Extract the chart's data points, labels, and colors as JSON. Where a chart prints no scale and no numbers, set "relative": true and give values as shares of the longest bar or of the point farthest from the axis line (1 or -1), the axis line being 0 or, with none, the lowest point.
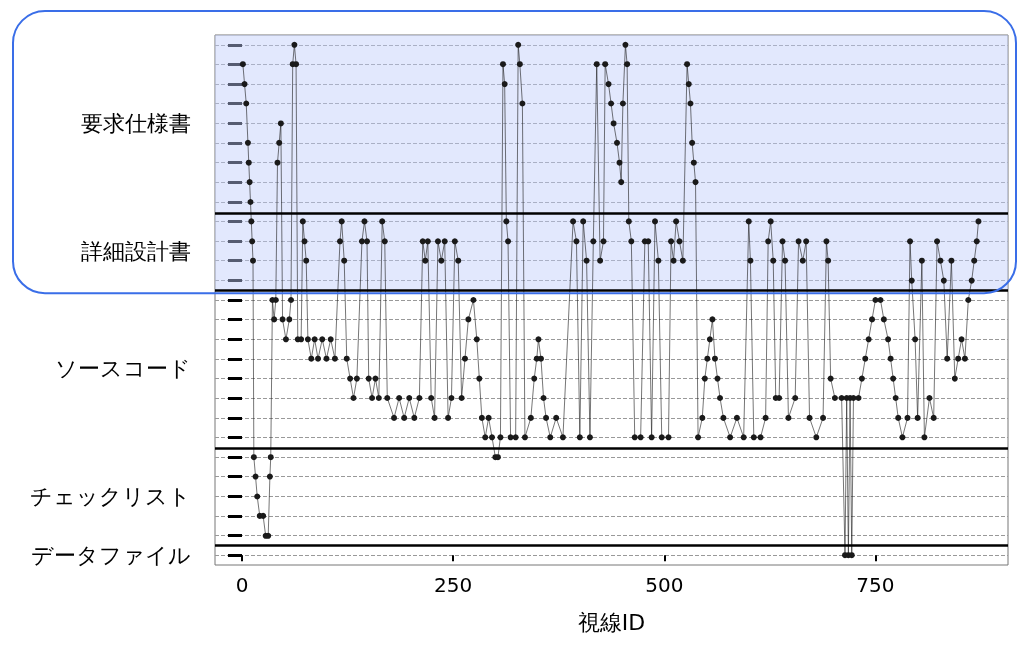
{
  "chart_data": {
    "type": "line",
    "xlabel": "視線ID",
    "relative": true,
    "x": [
      1,
      3,
      5,
      7,
      8,
      9,
      10,
      11,
      12,
      13,
      14,
      16,
      18,
      21,
      25,
      28,
      31,
      33,
      34,
      36,
      38,
      40,
      42,
      44,
      46,
      48,
      52,
      56,
      58,
      60,
      62,
      64,
      66,
      70,
      72,
      74,
      76,
      78,
      82,
      86,
      90,
      95,
      100,
      105,
      110,
      116,
      118,
      121,
      124,
      128,
      132,
      136,
      142,
      145,
      148,
      150,
      154,
      158,
      162,
      166,
      169,
      172,
      180,
      186,
      192,
      198,
      204,
      210,
      214,
      217,
      220,
      224,
      228,
      232,
      236,
      240,
      244,
      248,
      252,
      256,
      260,
      264,
      268,
      274,
      278,
      281,
      284,
      288,
      292,
      296,
      300,
      303,
      306,
      309,
      311,
      313,
      315,
      318,
      324,
      327,
      329,
      332,
      335,
      342,
      346,
      349,
      351,
      354,
      357,
      360,
      365,
      372,
      380,
      392,
      396,
      400,
      404,
      408,
      412,
      416,
      420,
      424,
      428,
      430,
      434,
      437,
      440,
      444,
      447,
      449,
      451,
      454,
      456,
      458,
      461,
      465,
      472,
      477,
      481,
      485,
      489,
      493,
      497,
      505,
      508,
      511,
      514,
      518,
      522,
      527,
      529,
      531,
      533,
      535,
      537,
      540,
      545,
      548,
      551,
      554,
      557,
      560,
      563,
      566,
      570,
      578,
      586,
      594,
      600,
      602,
      606,
      614,
      620,
      623,
      626,
      629,
      632,
      636,
      640,
      643,
      647,
      655,
      659,
      664,
      668,
      672,
      680,
      688,
      692,
      694,
      697,
      702,
      710,
      714,
      716,
      718,
      720,
      722,
      724,
      730,
      734,
      738,
      742,
      746,
      750,
      756,
      760,
      765,
      768,
      771,
      774,
      777,
      782,
      788,
      791,
      793,
      797,
      800,
      805,
      808,
      814,
      819,
      823,
      827,
      831,
      835,
      840,
      844,
      848,
      852,
      856,
      860,
      864,
      867,
      870,
      872
    ],
    "values": [
      0.962,
      0.923,
      0.885,
      0.808,
      0.769,
      0.731,
      0.692,
      0.654,
      0.615,
      0.577,
      0.192,
      0.154,
      0.115,
      0.077,
      0.077,
      0.038,
      0.038,
      0.154,
      0.192,
      0.5,
      0.462,
      0.5,
      0.769,
      0.808,
      0.846,
      0.462,
      0.423,
      0.462,
      0.5,
      0.962,
      1,
      0.962,
      0.423,
      0.423,
      0.654,
      0.615,
      0.577,
      0.423,
      0.385,
      0.423,
      0.385,
      0.423,
      0.385,
      0.423,
      0.385,
      0.615,
      0.654,
      0.577,
      0.385,
      0.346,
      0.308,
      0.346,
      0.615,
      0.654,
      0.615,
      0.346,
      0.308,
      0.346,
      0.308,
      0.654,
      0.615,
      0.308,
      0.269,
      0.308,
      0.269,
      0.308,
      0.269,
      0.308,
      0.615,
      0.577,
      0.615,
      0.308,
      0.269,
      0.615,
      0.577,
      0.615,
      0.269,
      0.308,
      0.615,
      0.577,
      0.308,
      0.385,
      0.462,
      0.5,
      0.423,
      0.346,
      0.269,
      0.231,
      0.269,
      0.231,
      0.192,
      0.192,
      0.231,
      0.962,
      0.923,
      0.654,
      0.615,
      0.231,
      0.231,
      1,
      0.962,
      0.885,
      0.231,
      0.269,
      0.346,
      0.385,
      0.423,
      0.385,
      0.308,
      0.269,
      0.231,
      0.269,
      0.231,
      0.654,
      0.615,
      0.231,
      0.654,
      0.577,
      0.231,
      0.615,
      0.962,
      0.577,
      0.615,
      0.962,
      0.923,
      0.885,
      0.846,
      0.808,
      0.769,
      0.731,
      0.885,
      1,
      0.962,
      0.654,
      0.615,
      0.231,
      0.231,
      0.615,
      0.615,
      0.231,
      0.654,
      0.577,
      0.231,
      0.231,
      0.615,
      0.577,
      0.654,
      0.615,
      0.577,
      0.962,
      0.923,
      0.885,
      0.808,
      0.769,
      0.731,
      0.231,
      0.269,
      0.346,
      0.385,
      0.423,
      0.462,
      0.385,
      0.346,
      0.308,
      0.269,
      0.231,
      0.269,
      0.231,
      0.654,
      0.577,
      0.231,
      0.231,
      0.269,
      0.615,
      0.654,
      0.577,
      0.308,
      0.308,
      0.615,
      0.577,
      0.269,
      0.308,
      0.615,
      0.577,
      0.615,
      0.269,
      0.231,
      0.269,
      0.615,
      0.577,
      0.346,
      0.308,
      0.308,
      0,
      0.308,
      0,
      0.308,
      0,
      0.308,
      0.308,
      0.346,
      0.385,
      0.423,
      0.462,
      0.5,
      0.5,
      0.462,
      0.423,
      0.385,
      0.346,
      0.308,
      0.269,
      0.231,
      0.269,
      0.615,
      0.538,
      0.423,
      0.269,
      0.577,
      0.231,
      0.308,
      0.269,
      0.615,
      0.577,
      0.538,
      0.385,
      0.577,
      0.346,
      0.385,
      0.423,
      0.385,
      0.5,
      0.538,
      0.577,
      0.615,
      0.654
    ],
    "color": "#1a1a1a",
    "marker": "circle",
    "xlim": [
      -32,
      907
    ],
    "xticks": [
      0,
      250,
      500,
      750
    ],
    "annotations": [
      "要求仕様書",
      "詳細設計書",
      "ソースコード",
      "チェックリスト",
      "データファイル"
    ],
    "ref_lines": [
      {
        "axis": "y",
        "value": 0.019,
        "color": "#000000"
      },
      {
        "axis": "y",
        "value": 0.212,
        "color": "#000000"
      },
      {
        "axis": "y",
        "value": 0.519,
        "color": "#000000"
      },
      {
        "axis": "y",
        "value": 0.673,
        "color": "#000000"
      }
    ],
    "bands": [
      {
        "axis": "y",
        "from": 0.519,
        "to": 1.019,
        "color": "#becdfa"
      }
    ],
    "grid": "y"
  }
}
